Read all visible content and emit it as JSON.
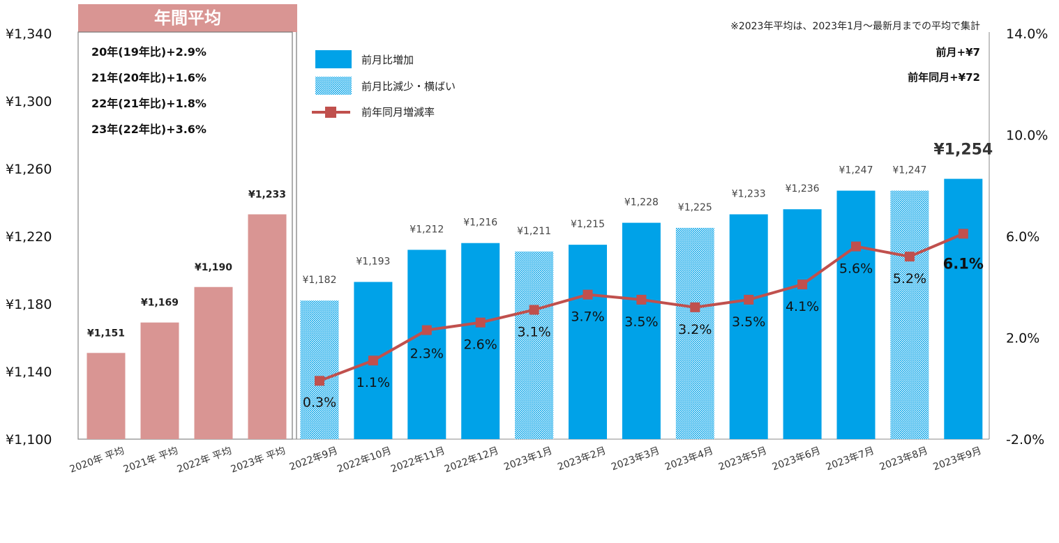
{
  "chart_data": {
    "type": "bar",
    "banner": "年間平均",
    "note": "※2023年平均は、2023年1月～最新月までの平均で集計",
    "summary": [
      "前月+¥7",
      "前年同月+¥72"
    ],
    "annual_notes": [
      "20年(19年比)+2.9%",
      "21年(20年比)+1.6%",
      "22年(21年比)+1.8%",
      "23年(22年比)+3.6%"
    ],
    "legend": [
      "前月比増加",
      "前月比減少・横ばい",
      "前年同月増減率"
    ],
    "y_left": {
      "min": 1100,
      "max": 1340,
      "ticks": [
        "¥1,100",
        "¥1,140",
        "¥1,180",
        "¥1,220",
        "¥1,260",
        "¥1,300",
        "¥1,340"
      ]
    },
    "y_right": {
      "min": -2.0,
      "max": 14.0,
      "ticks": [
        "-2.0%",
        "2.0%",
        "6.0%",
        "10.0%",
        "14.0%"
      ]
    },
    "annual": {
      "categories": [
        "2020年 平均",
        "2021年 平均",
        "2022年 平均",
        "2023年 平均"
      ],
      "values": [
        1151,
        1169,
        1190,
        1233
      ],
      "labels": [
        "¥1,151",
        "¥1,169",
        "¥1,190",
        "¥1,233"
      ]
    },
    "monthly": {
      "categories": [
        "2022年9月",
        "2022年10月",
        "2022年11月",
        "2022年12月",
        "2023年1月",
        "2023年2月",
        "2023年3月",
        "2023年4月",
        "2023年5月",
        "2023年6月",
        "2023年7月",
        "2023年8月",
        "2023年9月"
      ],
      "values": [
        1182,
        1193,
        1212,
        1216,
        1211,
        1215,
        1228,
        1225,
        1233,
        1236,
        1247,
        1247,
        1254
      ],
      "labels": [
        "¥1,182",
        "¥1,193",
        "¥1,212",
        "¥1,216",
        "¥1,211",
        "¥1,215",
        "¥1,228",
        "¥1,225",
        "¥1,233",
        "¥1,236",
        "¥1,247",
        "¥1,247",
        "¥1,254"
      ],
      "trend": [
        "down",
        "up",
        "up",
        "up",
        "down",
        "up",
        "up",
        "down",
        "up",
        "up",
        "up",
        "down",
        "up"
      ],
      "yoy_pct": [
        0.3,
        1.1,
        2.3,
        2.6,
        3.1,
        3.7,
        3.5,
        3.2,
        3.5,
        4.1,
        5.6,
        5.2,
        6.1
      ],
      "yoy_labels": [
        "0.3%",
        "1.1%",
        "2.3%",
        "2.6%",
        "3.1%",
        "3.7%",
        "3.5%",
        "3.2%",
        "3.5%",
        "4.1%",
        "5.6%",
        "5.2%",
        "6.1%"
      ]
    },
    "colors": {
      "annual": "#d99593",
      "increase": "#00a2e8",
      "decrease_pattern": "#00a2e8",
      "line": "#c0504d",
      "banner": "#d99593"
    }
  }
}
